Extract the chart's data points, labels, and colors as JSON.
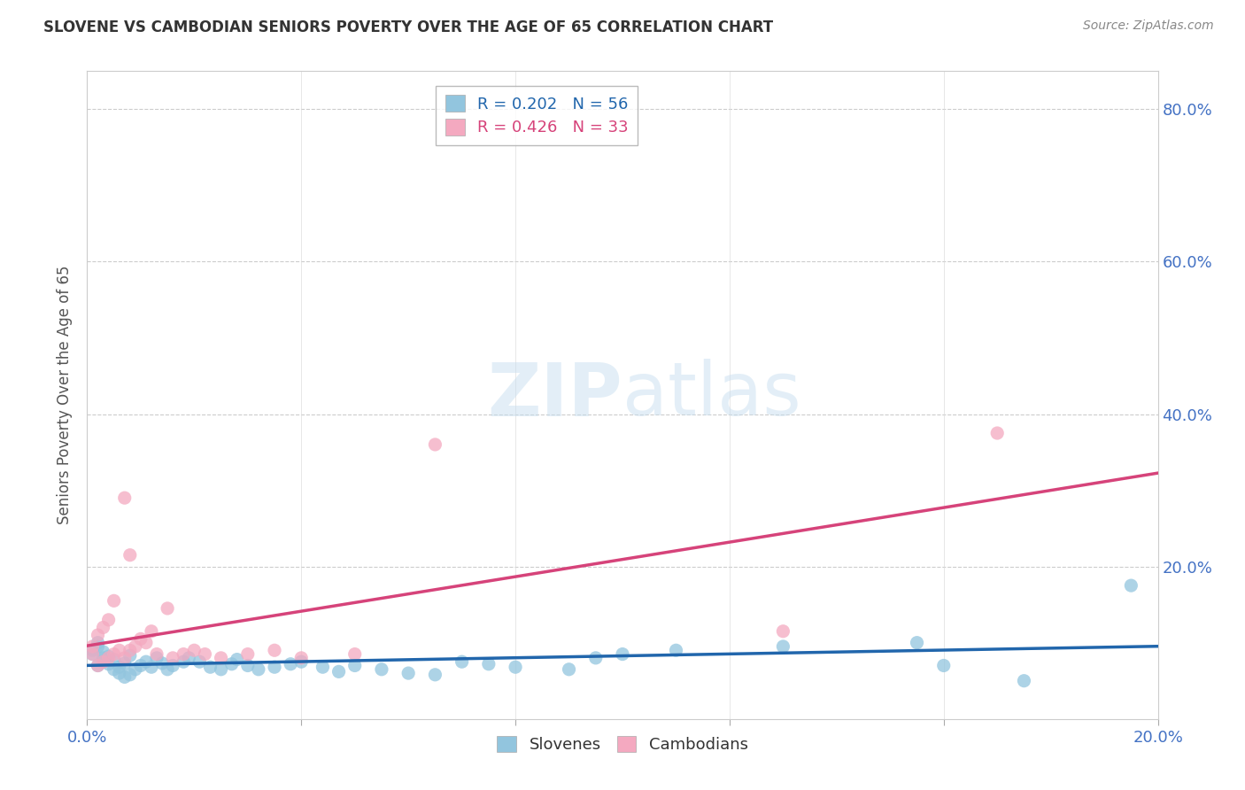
{
  "title": "SLOVENE VS CAMBODIAN SENIORS POVERTY OVER THE AGE OF 65 CORRELATION CHART",
  "source": "Source: ZipAtlas.com",
  "ylabel": "Seniors Poverty Over the Age of 65",
  "legend_slovene_r": "R = 0.202",
  "legend_slovene_n": "N = 56",
  "legend_cambodian_r": "R = 0.426",
  "legend_cambodian_n": "N = 33",
  "slovene_color": "#92c5de",
  "cambodian_color": "#f4a9c0",
  "slovene_line_color": "#2166ac",
  "cambodian_line_color": "#d6437a",
  "bg_color": "#ffffff",
  "xlim": [
    0.0,
    0.2
  ],
  "ylim": [
    0.0,
    0.85
  ],
  "slovene_x": [
    0.001,
    0.001,
    0.002,
    0.002,
    0.002,
    0.003,
    0.003,
    0.003,
    0.004,
    0.004,
    0.005,
    0.005,
    0.006,
    0.006,
    0.007,
    0.007,
    0.008,
    0.008,
    0.009,
    0.01,
    0.011,
    0.012,
    0.013,
    0.014,
    0.015,
    0.016,
    0.018,
    0.019,
    0.021,
    0.023,
    0.025,
    0.027,
    0.028,
    0.03,
    0.032,
    0.035,
    0.038,
    0.04,
    0.044,
    0.047,
    0.05,
    0.055,
    0.06,
    0.065,
    0.07,
    0.075,
    0.08,
    0.09,
    0.095,
    0.1,
    0.11,
    0.13,
    0.155,
    0.16,
    0.175,
    0.195
  ],
  "slovene_y": [
    0.085,
    0.09,
    0.07,
    0.095,
    0.1,
    0.08,
    0.075,
    0.088,
    0.072,
    0.082,
    0.065,
    0.078,
    0.06,
    0.068,
    0.055,
    0.073,
    0.058,
    0.083,
    0.065,
    0.07,
    0.075,
    0.068,
    0.08,
    0.073,
    0.065,
    0.07,
    0.075,
    0.08,
    0.075,
    0.068,
    0.065,
    0.072,
    0.078,
    0.07,
    0.065,
    0.068,
    0.072,
    0.075,
    0.068,
    0.062,
    0.07,
    0.065,
    0.06,
    0.058,
    0.075,
    0.072,
    0.068,
    0.065,
    0.08,
    0.085,
    0.09,
    0.095,
    0.1,
    0.07,
    0.05,
    0.175
  ],
  "cambodian_x": [
    0.001,
    0.001,
    0.002,
    0.002,
    0.003,
    0.003,
    0.004,
    0.004,
    0.005,
    0.005,
    0.006,
    0.007,
    0.007,
    0.008,
    0.008,
    0.009,
    0.01,
    0.011,
    0.012,
    0.013,
    0.015,
    0.016,
    0.018,
    0.02,
    0.022,
    0.025,
    0.03,
    0.035,
    0.04,
    0.05,
    0.065,
    0.13,
    0.17
  ],
  "cambodian_y": [
    0.085,
    0.095,
    0.07,
    0.11,
    0.075,
    0.12,
    0.08,
    0.13,
    0.085,
    0.155,
    0.09,
    0.08,
    0.29,
    0.09,
    0.215,
    0.095,
    0.105,
    0.1,
    0.115,
    0.085,
    0.145,
    0.08,
    0.085,
    0.09,
    0.085,
    0.08,
    0.085,
    0.09,
    0.08,
    0.085,
    0.36,
    0.115,
    0.375
  ]
}
